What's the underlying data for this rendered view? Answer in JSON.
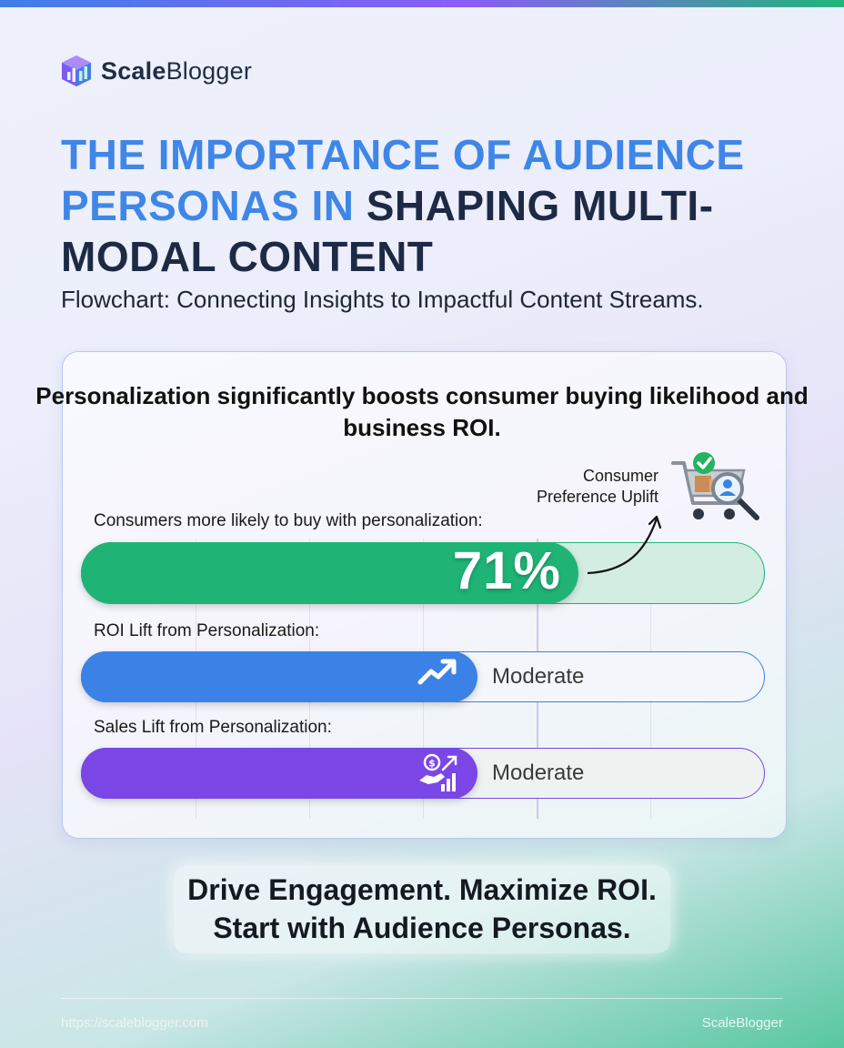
{
  "brand": {
    "name_bold": "Scale",
    "name_regular": "Blogger"
  },
  "header": {
    "title_part1": "THE IMPORTANCE OF AUDIENCE PERSONAS IN",
    "title_part2": "SHAPING MULTI-MODAL CONTENT",
    "subtitle": "Flowchart: Connecting Insights to Impactful Content Streams."
  },
  "chart_data": {
    "type": "bar",
    "orientation": "horizontal",
    "title": "Personalization significantly boosts consumer buying likelihood and business ROI.",
    "categories": [
      "Consumers more likely to buy with personalization:",
      "ROI Lift from Personalization:",
      "Sales Lift from Personalization:"
    ],
    "series": [
      {
        "values": [
          71,
          null,
          null
        ],
        "labels": [
          "71%",
          "Moderate",
          "Moderate"
        ]
      }
    ],
    "xlim": [
      0,
      100
    ],
    "grid": true,
    "colors": [
      "#1fb476",
      "#3b82e6",
      "#7a46e6"
    ],
    "track_colors": [
      "#d3ede3",
      "#f3f6fb",
      "#eef3f2"
    ],
    "annotation": {
      "line1": "Consumer",
      "line2": "Preference Uplift",
      "target": "71%"
    },
    "icons": [
      "shopping-cart-check-search-icon",
      "trend-arrow-icon",
      "money-handshake-growth-icon"
    ]
  },
  "cta": {
    "line1": "Drive Engagement. Maximize ROI.",
    "line2": "Start with Audience Personas."
  },
  "footer": {
    "url": "https://scaleblogger.com",
    "brand": "ScaleBlogger"
  }
}
